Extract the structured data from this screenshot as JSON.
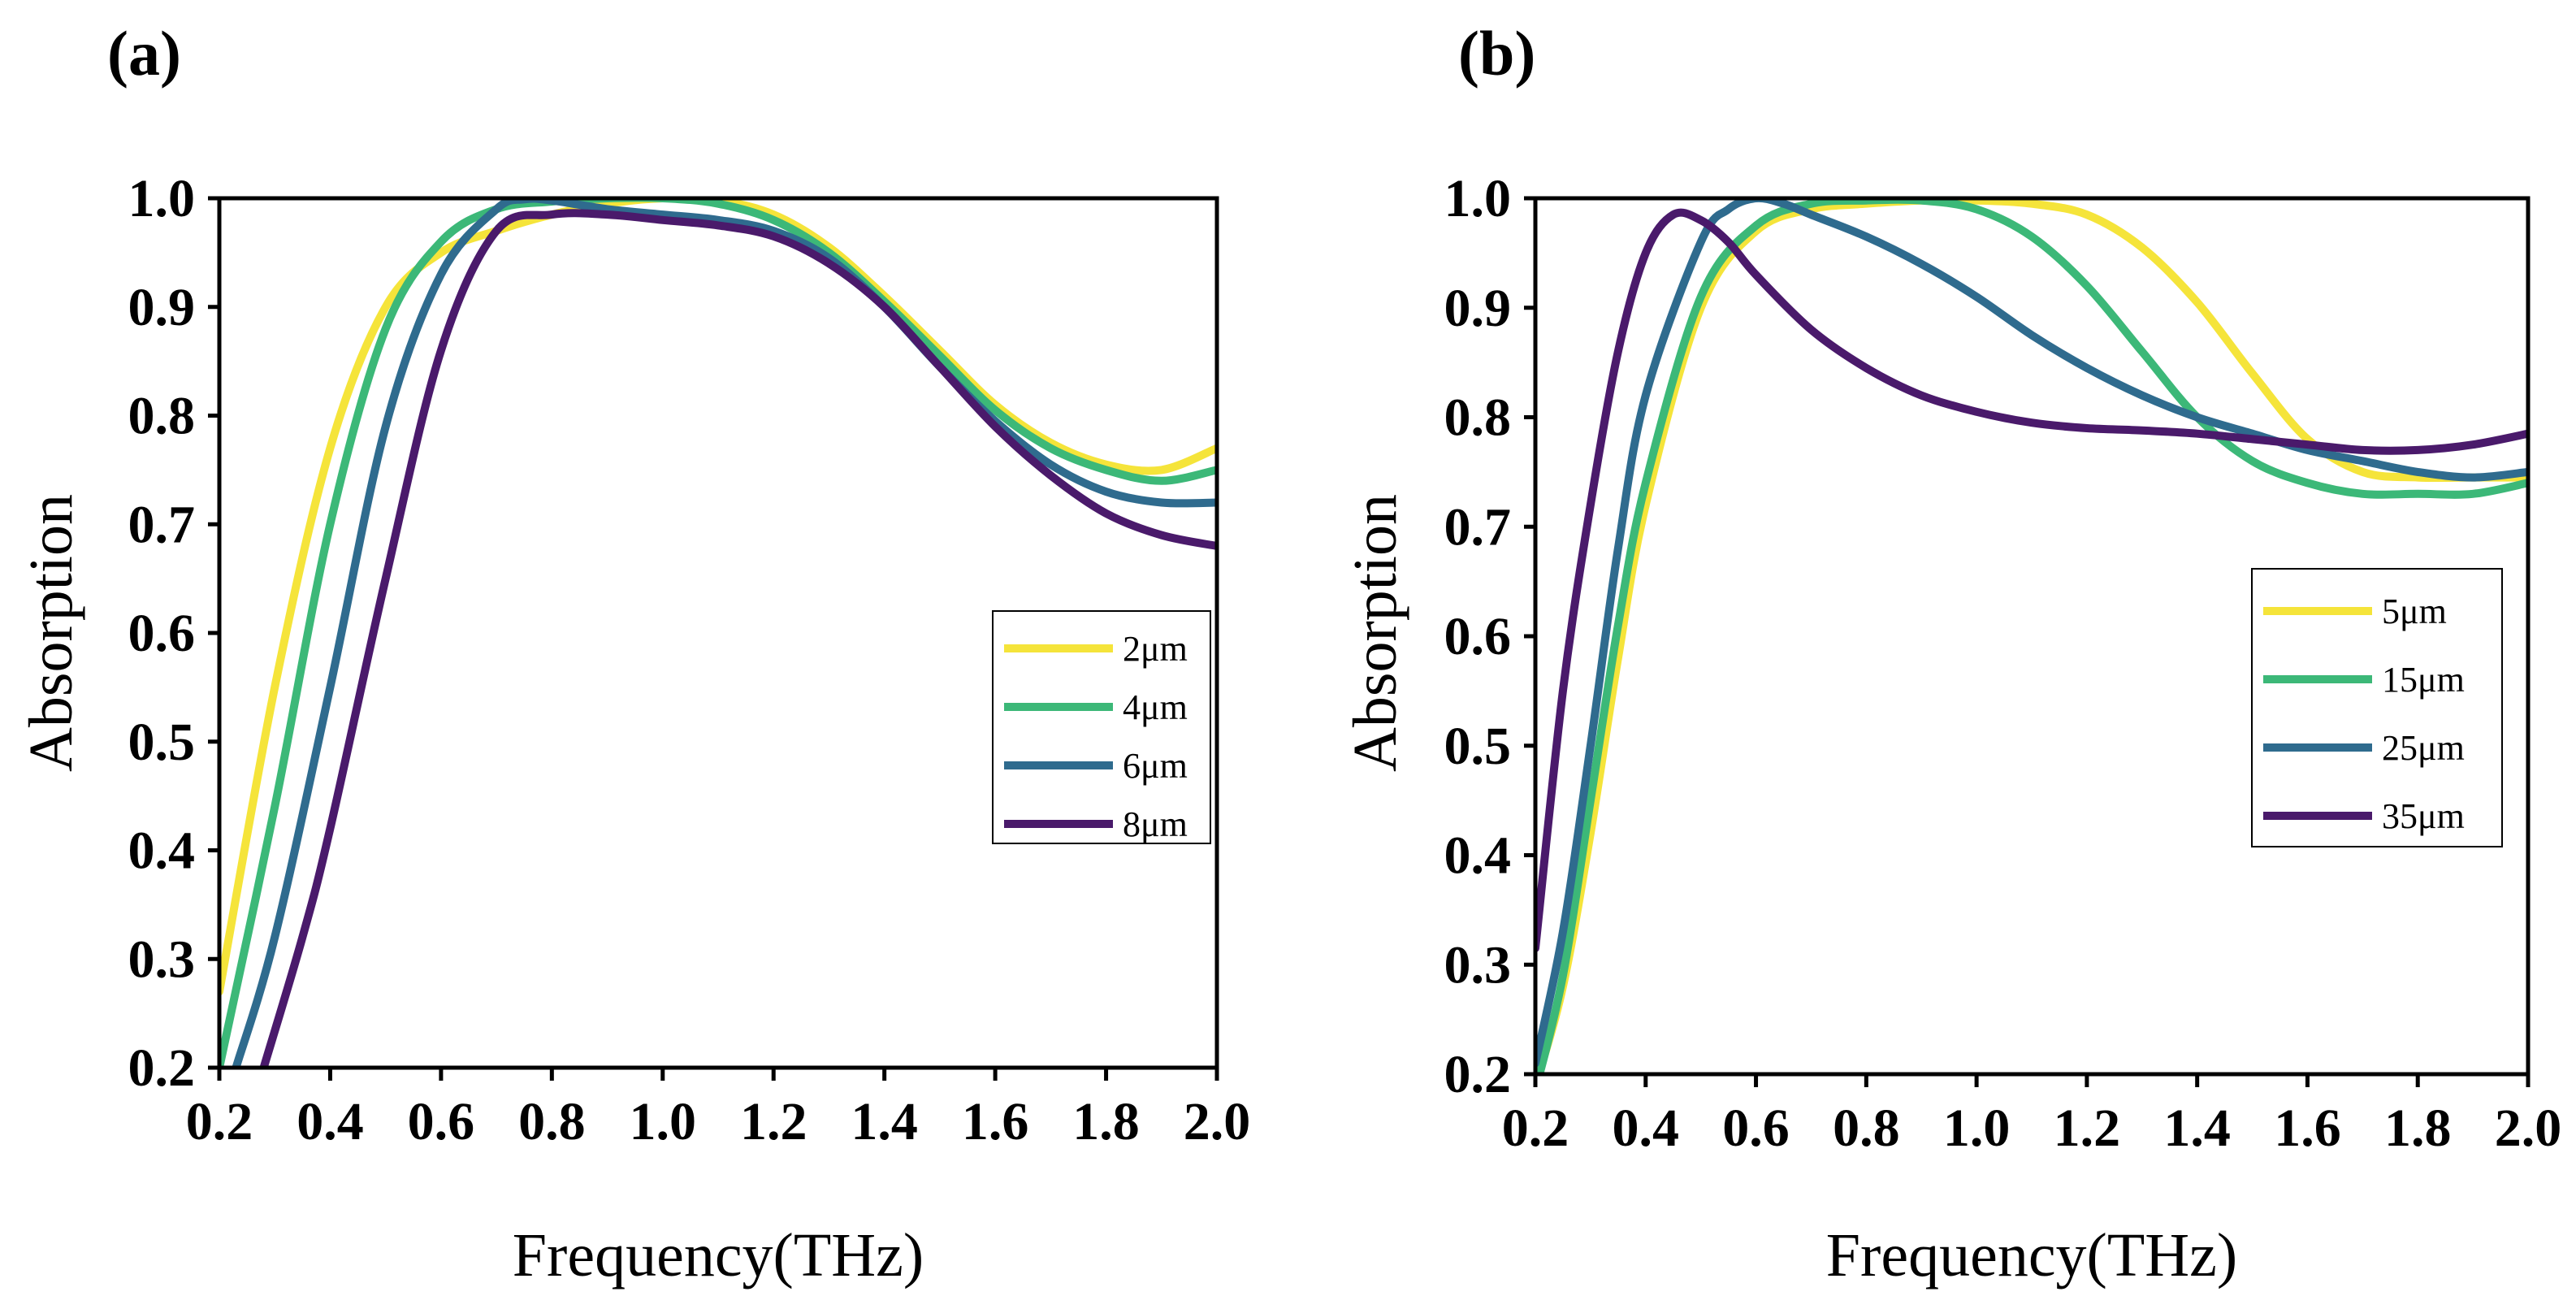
{
  "chart_data": [
    {
      "type": "line",
      "panel_label": "(a)",
      "xlabel": "Frequency(THz)",
      "ylabel": "Absorption",
      "xlim": [
        0.2,
        2.0
      ],
      "ylim": [
        0.2,
        1.0
      ],
      "xticks": [
        "0.2",
        "0.4",
        "0.6",
        "0.8",
        "1.0",
        "1.2",
        "1.4",
        "1.6",
        "1.8",
        "2.0"
      ],
      "yticks": [
        "0.2",
        "0.3",
        "0.4",
        "0.5",
        "0.6",
        "0.7",
        "0.8",
        "0.9",
        "1.0"
      ],
      "legend_position": "center-right",
      "series": [
        {
          "name": "2μm",
          "color": "#f5e43a",
          "x": [
            0.2,
            0.3,
            0.4,
            0.5,
            0.6,
            0.7,
            0.8,
            0.9,
            1.0,
            1.1,
            1.2,
            1.3,
            1.4,
            1.5,
            1.6,
            1.7,
            1.8,
            1.9,
            2.0
          ],
          "y": [
            0.27,
            0.55,
            0.77,
            0.9,
            0.95,
            0.97,
            0.985,
            0.995,
            1.0,
            0.998,
            0.985,
            0.955,
            0.91,
            0.86,
            0.81,
            0.775,
            0.755,
            0.75,
            0.77
          ]
        },
        {
          "name": "4μm",
          "color": "#3cb878",
          "x": [
            0.2,
            0.3,
            0.4,
            0.5,
            0.6,
            0.7,
            0.8,
            0.9,
            1.0,
            1.1,
            1.2,
            1.3,
            1.4,
            1.5,
            1.6,
            1.7,
            1.8,
            1.9,
            2.0
          ],
          "y": [
            0.2,
            0.44,
            0.7,
            0.88,
            0.96,
            0.99,
            0.997,
            1.0,
            1.0,
            0.995,
            0.98,
            0.95,
            0.905,
            0.855,
            0.805,
            0.77,
            0.75,
            0.74,
            0.75
          ]
        },
        {
          "name": "6μm",
          "color": "#2f6b8e",
          "x": [
            0.23,
            0.3,
            0.4,
            0.5,
            0.6,
            0.7,
            0.75,
            0.8,
            0.9,
            1.0,
            1.1,
            1.2,
            1.3,
            1.4,
            1.5,
            1.6,
            1.7,
            1.8,
            1.9,
            2.0
          ],
          "y": [
            0.2,
            0.32,
            0.55,
            0.79,
            0.93,
            0.99,
            0.999,
            0.998,
            0.99,
            0.985,
            0.98,
            0.97,
            0.945,
            0.9,
            0.845,
            0.795,
            0.755,
            0.73,
            0.72,
            0.72
          ]
        },
        {
          "name": "8μm",
          "color": "#4a1a6b",
          "x": [
            0.28,
            0.35,
            0.4,
            0.5,
            0.6,
            0.7,
            0.8,
            0.9,
            1.0,
            1.1,
            1.2,
            1.3,
            1.4,
            1.5,
            1.6,
            1.7,
            1.8,
            1.9,
            2.0
          ],
          "y": [
            0.2,
            0.32,
            0.42,
            0.65,
            0.86,
            0.97,
            0.985,
            0.985,
            0.98,
            0.975,
            0.965,
            0.94,
            0.9,
            0.845,
            0.79,
            0.745,
            0.71,
            0.69,
            0.68
          ]
        }
      ]
    },
    {
      "type": "line",
      "panel_label": "(b)",
      "xlabel": "Frequency(THz)",
      "ylabel": "Absorption",
      "xlim": [
        0.2,
        2.0
      ],
      "ylim": [
        0.2,
        1.0
      ],
      "xticks": [
        "0.2",
        "0.4",
        "0.6",
        "0.8",
        "1.0",
        "1.2",
        "1.4",
        "1.6",
        "1.8",
        "2.0"
      ],
      "yticks": [
        "0.2",
        "0.3",
        "0.4",
        "0.5",
        "0.6",
        "0.7",
        "0.8",
        "0.9",
        "1.0"
      ],
      "legend_position": "center-right",
      "series": [
        {
          "name": "5μm",
          "color": "#f5e43a",
          "x": [
            0.2,
            0.25,
            0.3,
            0.35,
            0.4,
            0.5,
            0.6,
            0.7,
            0.8,
            0.9,
            1.0,
            1.1,
            1.2,
            1.3,
            1.4,
            1.5,
            1.6,
            1.7,
            1.8,
            1.9,
            2.0
          ],
          "y": [
            0.19,
            0.28,
            0.42,
            0.58,
            0.72,
            0.9,
            0.97,
            0.99,
            0.995,
            0.998,
            0.998,
            0.995,
            0.985,
            0.955,
            0.905,
            0.84,
            0.78,
            0.75,
            0.745,
            0.745,
            0.745
          ]
        },
        {
          "name": "15μm",
          "color": "#3cb878",
          "x": [
            0.2,
            0.25,
            0.3,
            0.35,
            0.4,
            0.5,
            0.6,
            0.7,
            0.8,
            0.9,
            1.0,
            1.1,
            1.2,
            1.3,
            1.4,
            1.5,
            1.6,
            1.7,
            1.8,
            1.9,
            2.0
          ],
          "y": [
            0.185,
            0.29,
            0.45,
            0.61,
            0.74,
            0.91,
            0.975,
            0.995,
            0.998,
            0.998,
            0.99,
            0.965,
            0.92,
            0.86,
            0.8,
            0.76,
            0.74,
            0.73,
            0.73,
            0.73,
            0.74
          ]
        },
        {
          "name": "25μm",
          "color": "#2f6b8e",
          "x": [
            0.2,
            0.25,
            0.3,
            0.35,
            0.4,
            0.5,
            0.55,
            0.6,
            0.65,
            0.7,
            0.8,
            0.9,
            1.0,
            1.1,
            1.2,
            1.3,
            1.4,
            1.5,
            1.6,
            1.7,
            1.8,
            1.9,
            2.0
          ],
          "y": [
            0.21,
            0.33,
            0.5,
            0.68,
            0.82,
            0.96,
            0.99,
            1.0,
            0.995,
            0.985,
            0.965,
            0.94,
            0.91,
            0.875,
            0.845,
            0.82,
            0.8,
            0.785,
            0.77,
            0.76,
            0.75,
            0.745,
            0.75
          ]
        },
        {
          "name": "35μm",
          "color": "#4a1a6b",
          "x": [
            0.2,
            0.25,
            0.3,
            0.35,
            0.4,
            0.45,
            0.5,
            0.55,
            0.6,
            0.7,
            0.8,
            0.9,
            1.0,
            1.1,
            1.2,
            1.3,
            1.4,
            1.5,
            1.6,
            1.7,
            1.8,
            1.9,
            2.0
          ],
          "y": [
            0.315,
            0.55,
            0.72,
            0.86,
            0.95,
            0.985,
            0.98,
            0.96,
            0.93,
            0.88,
            0.845,
            0.82,
            0.805,
            0.795,
            0.79,
            0.788,
            0.785,
            0.78,
            0.775,
            0.77,
            0.77,
            0.775,
            0.785
          ]
        }
      ]
    }
  ]
}
